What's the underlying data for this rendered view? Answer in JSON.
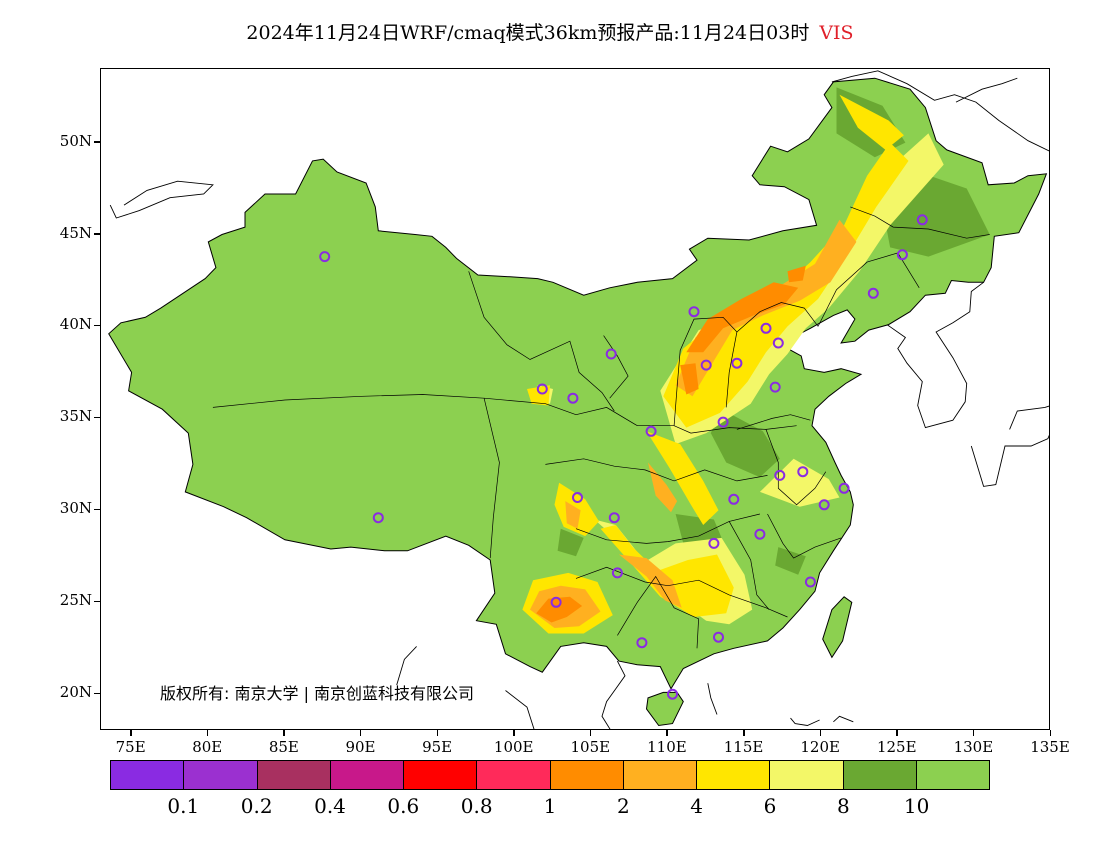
{
  "title": {
    "main": "2024年11月24日WRF/cmaq模式36km预报产品:11月24日03时",
    "variable": "VIS",
    "variable_color": "#e0202a"
  },
  "map": {
    "lon_range": [
      73,
      135
    ],
    "lat_range": [
      18,
      54
    ],
    "lat_ticks": [
      {
        "value": 50,
        "label": "50N"
      },
      {
        "value": 45,
        "label": "45N"
      },
      {
        "value": 40,
        "label": "40N"
      },
      {
        "value": 35,
        "label": "35N"
      },
      {
        "value": 30,
        "label": "30N"
      },
      {
        "value": 25,
        "label": "25N"
      },
      {
        "value": 20,
        "label": "20N"
      }
    ],
    "lon_ticks": [
      {
        "value": 75,
        "label": "75E"
      },
      {
        "value": 80,
        "label": "80E"
      },
      {
        "value": 85,
        "label": "85E"
      },
      {
        "value": 90,
        "label": "90E"
      },
      {
        "value": 95,
        "label": "95E"
      },
      {
        "value": 100,
        "label": "100E"
      },
      {
        "value": 105,
        "label": "105E"
      },
      {
        "value": 110,
        "label": "110E"
      },
      {
        "value": 115,
        "label": "115E"
      },
      {
        "value": 120,
        "label": "120E"
      },
      {
        "value": 125,
        "label": "125E"
      },
      {
        "value": 130,
        "label": "130E"
      },
      {
        "value": 135,
        "label": "135E"
      }
    ],
    "stations": [
      [
        87.6,
        43.8
      ],
      [
        91.1,
        29.6
      ],
      [
        101.8,
        36.6
      ],
      [
        103.8,
        36.1
      ],
      [
        106.3,
        38.5
      ],
      [
        104.1,
        30.7
      ],
      [
        106.5,
        29.6
      ],
      [
        106.7,
        26.6
      ],
      [
        102.7,
        25.0
      ],
      [
        108.3,
        22.8
      ],
      [
        110.3,
        20.0
      ],
      [
        113.3,
        23.1
      ],
      [
        116.0,
        28.7
      ],
      [
        114.3,
        30.6
      ],
      [
        113.0,
        28.2
      ],
      [
        113.6,
        34.8
      ],
      [
        112.5,
        37.9
      ],
      [
        114.5,
        38.0
      ],
      [
        108.9,
        34.3
      ],
      [
        111.7,
        40.8
      ],
      [
        116.4,
        39.9
      ],
      [
        117.2,
        39.1
      ],
      [
        117.0,
        36.7
      ],
      [
        117.3,
        31.9
      ],
      [
        118.8,
        32.1
      ],
      [
        121.5,
        31.2
      ],
      [
        120.2,
        30.3
      ],
      [
        119.3,
        26.1
      ],
      [
        123.4,
        41.8
      ],
      [
        125.3,
        43.9
      ],
      [
        126.6,
        45.8
      ]
    ]
  },
  "legend": {
    "colors": [
      "#8a2be2",
      "#9b30d0",
      "#a83060",
      "#c8188a",
      "#ff0000",
      "#ff2a5a",
      "#ff8c00",
      "#ffb020",
      "#ffe600",
      "#f3f768",
      "#6aa832",
      "#8cd050"
    ],
    "labels": [
      "0.1",
      "0.2",
      "0.4",
      "0.6",
      "0.8",
      "1",
      "2",
      "4",
      "6",
      "8",
      "10"
    ]
  },
  "copyright": "版权所有: 南京大学 | 南京创蓝科技有限公司"
}
